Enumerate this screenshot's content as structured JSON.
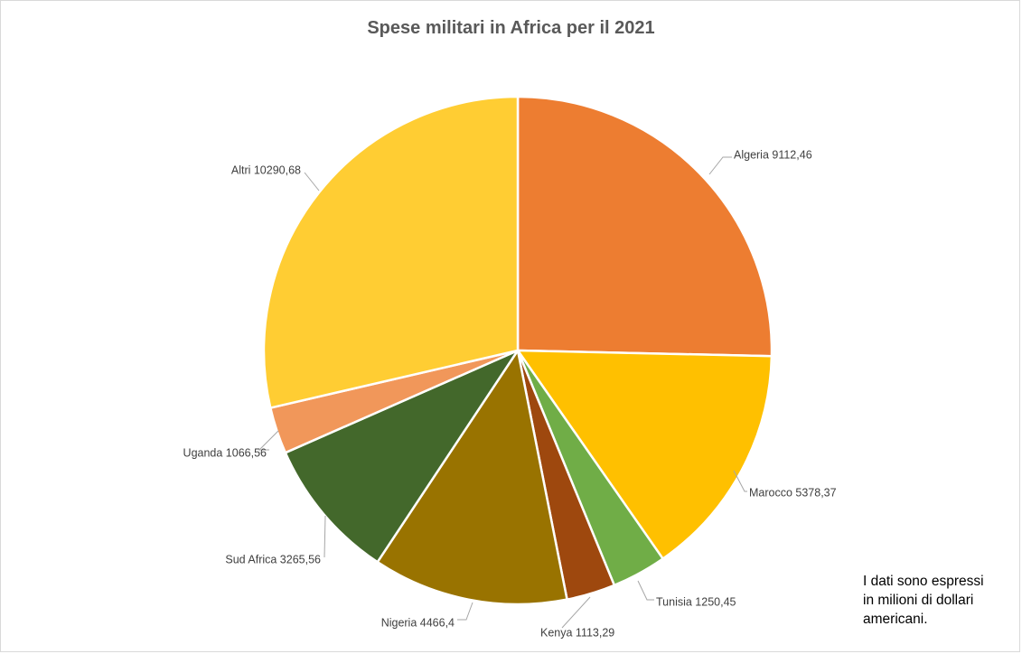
{
  "chart_data": {
    "type": "pie",
    "title": "Spese militari in Africa per il 2021",
    "start_angle_deg": 0,
    "direction": "clockwise",
    "slices": [
      {
        "name": "Algeria",
        "value": 9112.46,
        "label": "Algeria 9112,46",
        "color": "#ED7D31"
      },
      {
        "name": "Marocco",
        "value": 5378.37,
        "label": "Marocco 5378,37",
        "color": "#FFC000"
      },
      {
        "name": "Tunisia",
        "value": 1250.45,
        "label": "Tunisia 1250,45",
        "color": "#70AD47"
      },
      {
        "name": "Kenya",
        "value": 1113.29,
        "label": "Kenya 1113,29",
        "color": "#9E480E"
      },
      {
        "name": "Nigeria",
        "value": 4466.4,
        "label": "Nigeria 4466,4",
        "color": "#997300"
      },
      {
        "name": "Sud Africa",
        "value": 3265.56,
        "label": "Sud Africa 3265,56",
        "color": "#43682B"
      },
      {
        "name": "Uganda",
        "value": 1066.56,
        "label": "Uganda 1066,56",
        "color": "#F1975A"
      },
      {
        "name": "Altri",
        "value": 10290.68,
        "label": "Altri 10290,68",
        "color": "#FFCD33"
      }
    ]
  },
  "note": {
    "lines": [
      "I dati sono espressi",
      "in milioni di dollari",
      "americani."
    ]
  }
}
